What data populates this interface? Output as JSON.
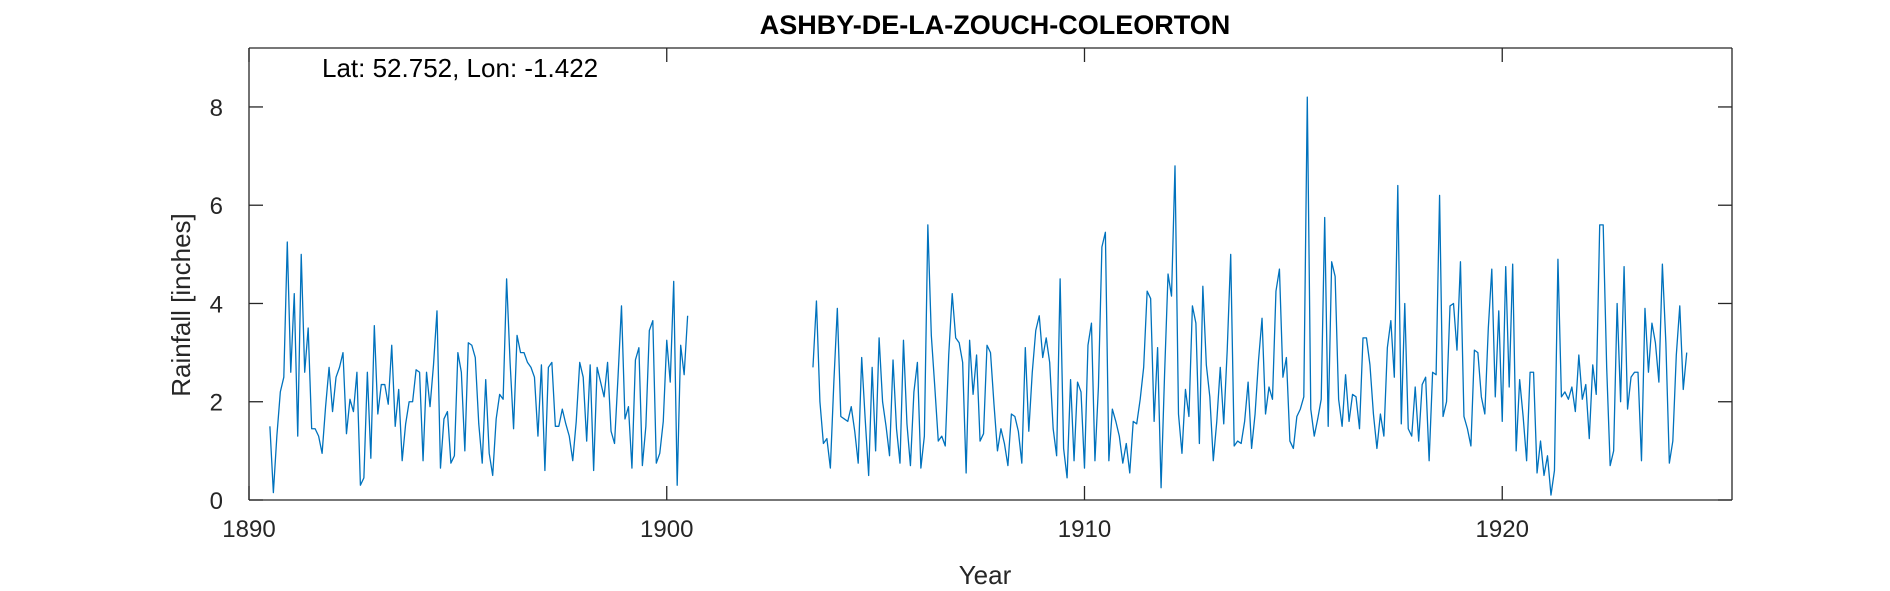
{
  "chart_data": {
    "type": "line",
    "title": "ASHBY-DE-LA-ZOUCH-COLEORTON",
    "annotation": "Lat: 52.752, Lon: -1.422",
    "xlabel": "Year",
    "ylabel": "Rainfall [inches]",
    "xlim": [
      1890,
      1925.5
    ],
    "ylim": [
      0,
      9.2
    ],
    "xticks": [
      1890,
      1900,
      1910,
      1920
    ],
    "yticks": [
      0,
      2,
      4,
      6,
      8
    ],
    "grid": false,
    "line_color": "#0072BD",
    "series": [
      {
        "segments": [
          {
            "x_start": 1890.5,
            "x_step": 0.0833333,
            "values": [
              1.5,
              0.15,
              1.3,
              2.2,
              2.5,
              5.25,
              2.6,
              4.2,
              1.3,
              5.0,
              2.6,
              3.5,
              1.45,
              1.45,
              1.3,
              0.95,
              1.9,
              2.7,
              1.8,
              2.5,
              2.7,
              3.0,
              1.35,
              2.05,
              1.8,
              2.6,
              0.3,
              0.45,
              2.6,
              0.85,
              3.55,
              1.75,
              2.35,
              2.35,
              1.95,
              3.15,
              1.5,
              2.25,
              0.8,
              1.55,
              2.0,
              2.0,
              2.65,
              2.6,
              0.8,
              2.6,
              1.9,
              2.75,
              3.85,
              0.65,
              1.65,
              1.8,
              0.75,
              0.9,
              3.0,
              2.6,
              1.0,
              3.2,
              3.15,
              2.9,
              1.55,
              0.75,
              2.45,
              0.95,
              0.5,
              1.65,
              2.15,
              2.05,
              4.5,
              2.8,
              1.45,
              3.35,
              3.0,
              3.0,
              2.8,
              2.7,
              2.5,
              1.3,
              2.75,
              0.6,
              2.7,
              2.8,
              1.5,
              1.5,
              1.85,
              1.55,
              1.3,
              0.8,
              1.6,
              2.8,
              2.5,
              1.2,
              2.75,
              0.6,
              2.7,
              2.4,
              2.1,
              2.8,
              1.4,
              1.15,
              2.5,
              3.95,
              1.65,
              1.9,
              0.65,
              2.85,
              3.1,
              0.7,
              1.5,
              3.45,
              3.65,
              0.75,
              0.95,
              1.6,
              3.25,
              2.4,
              4.45,
              0.3,
              3.15,
              2.55,
              3.75
            ]
          },
          {
            "x_start": 1903.5,
            "x_step": 0.0833333,
            "values": [
              2.7,
              4.05,
              2.0,
              1.15,
              1.25,
              0.65,
              2.4,
              3.9,
              1.7,
              1.65,
              1.6,
              1.9,
              1.4,
              0.75,
              2.9,
              1.65,
              0.5,
              2.7,
              1.0,
              3.3,
              2.0,
              1.5,
              0.9,
              2.85,
              1.45,
              0.75,
              3.25,
              1.55,
              0.7,
              2.2,
              2.8,
              0.65,
              1.3,
              5.6,
              3.35,
              2.3,
              1.2,
              1.3,
              1.1,
              2.95,
              4.2,
              3.3,
              3.2,
              2.8,
              0.55,
              3.25,
              2.15,
              2.95,
              1.2,
              1.35,
              3.15,
              3.0,
              1.95,
              1.0,
              1.45,
              1.15,
              0.7,
              1.75,
              1.7,
              1.4,
              0.75,
              3.1,
              1.4,
              2.6,
              3.45,
              3.75,
              2.9,
              3.3,
              2.8,
              1.45,
              0.9,
              4.5,
              1.05,
              0.45,
              2.45,
              0.8,
              2.4,
              2.2,
              0.65,
              3.15,
              3.6,
              0.8,
              2.3,
              5.15,
              5.45,
              0.8,
              1.85,
              1.6,
              1.3,
              0.75,
              1.15,
              0.55,
              1.6,
              1.55,
              2.05,
              2.7,
              4.25,
              4.1,
              1.6,
              3.1,
              0.25,
              2.55,
              4.6,
              4.15,
              6.8,
              1.75,
              0.95,
              2.25,
              1.7,
              3.95,
              3.6,
              1.15,
              4.35,
              2.75,
              2.1,
              0.8,
              1.6,
              2.7,
              1.55,
              3.05,
              5.0,
              1.1,
              1.2,
              1.15,
              1.6,
              2.4,
              1.05,
              1.75,
              2.85,
              3.7,
              1.75,
              2.3,
              2.05,
              4.25,
              4.7,
              2.5,
              2.9,
              1.2,
              1.05,
              1.7,
              1.85,
              2.1,
              8.2,
              1.85,
              1.3,
              1.65,
              2.05,
              5.75,
              1.5,
              4.85,
              4.55,
              2.05,
              1.5,
              2.55,
              1.6,
              2.15,
              2.1,
              1.45,
              3.3,
              3.3,
              2.75,
              1.75,
              1.05,
              1.75,
              1.3,
              3.1,
              3.65,
              2.5,
              6.4,
              1.55,
              4.0,
              1.45,
              1.3,
              2.3,
              1.2,
              2.35,
              2.5,
              0.8,
              2.6,
              2.55,
              6.2,
              1.7,
              2.0,
              3.95,
              4.0,
              3.05,
              4.85,
              1.7,
              1.45,
              1.1,
              3.05,
              3.0,
              2.1,
              1.75,
              3.5,
              4.7,
              2.1,
              3.85,
              1.6,
              4.75,
              2.3,
              4.8,
              1.0,
              2.45,
              1.7,
              0.8,
              2.6,
              2.6,
              0.55,
              1.2,
              0.5,
              0.9,
              0.1,
              0.6,
              4.9,
              2.1,
              2.2,
              2.05,
              2.3,
              1.8,
              2.95,
              2.05,
              2.35,
              1.25,
              2.75,
              2.15,
              5.6,
              5.6,
              2.7,
              0.7,
              1.0,
              4.0,
              2.0,
              4.75,
              1.85,
              2.5,
              2.6,
              2.6,
              0.8,
              3.9,
              2.6,
              3.6,
              3.2,
              2.4,
              4.8,
              3.2,
              0.75,
              1.2,
              2.95,
              3.95,
              2.25,
              3.0
            ]
          }
        ]
      }
    ]
  }
}
